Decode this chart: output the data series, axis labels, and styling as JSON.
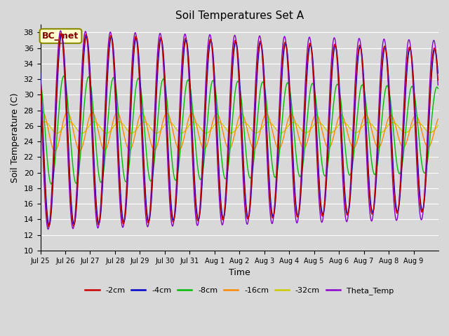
{
  "title": "Soil Temperatures Set A",
  "xlabel": "Time",
  "ylabel": "Soil Temperature (C)",
  "ylim": [
    10,
    39
  ],
  "yticks": [
    10,
    12,
    14,
    16,
    18,
    20,
    22,
    24,
    26,
    28,
    30,
    32,
    34,
    36,
    38
  ],
  "annotation_text": "BC_met",
  "annotation_bg": "#ffffcc",
  "annotation_border": "#888800",
  "annotation_text_color": "#800000",
  "series_colors": {
    "-2cm": "#cc0000",
    "-4cm": "#0000cc",
    "-8cm": "#00bb00",
    "-16cm": "#ff8800",
    "-32cm": "#cccc00",
    "Theta_Temp": "#8800cc"
  },
  "background_color": "#d8d8d8",
  "plot_bg": "#d8d8d8",
  "grid_color": "#ffffff",
  "x_tick_labels": [
    "Jul 25",
    "Jul 26",
    "Jul 27",
    "Jul 28",
    "Jul 29",
    "Jul 30",
    "Jul 31",
    "Aug 1",
    "Aug 2",
    "Aug 3",
    "Aug 4",
    "Aug 5",
    "Aug 6",
    "Aug 7",
    "Aug 8",
    "Aug 9"
  ],
  "n_days": 16,
  "points_per_day": 48,
  "line_width": 1.0,
  "figsize": [
    6.4,
    4.8
  ],
  "dpi": 100
}
